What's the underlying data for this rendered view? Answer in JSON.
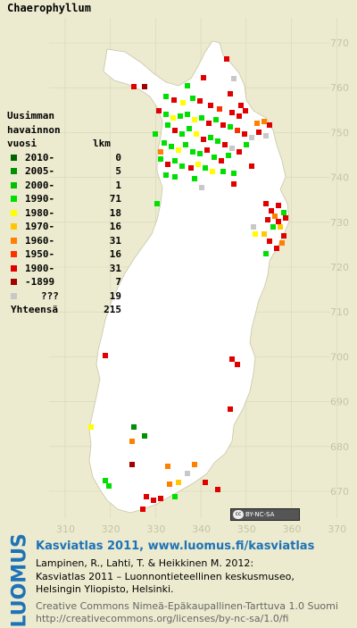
{
  "title": "Chaerophyllum",
  "legend": {
    "header_line1": "Uusimman",
    "header_line2": "havainnon",
    "header_col1": "vuosi",
    "header_col2": "lkm",
    "rows": [
      {
        "label": "2010-",
        "count": "0",
        "color": "#006400"
      },
      {
        "label": "2005-",
        "count": "5",
        "color": "#009000"
      },
      {
        "label": "2000-",
        "count": "1",
        "color": "#00c000"
      },
      {
        "label": "1990-",
        "count": "71",
        "color": "#00e000"
      },
      {
        "label": "1980-",
        "count": "18",
        "color": "#ffff00"
      },
      {
        "label": "1970-",
        "count": "16",
        "color": "#ffc800"
      },
      {
        "label": "1960-",
        "count": "31",
        "color": "#ff8000"
      },
      {
        "label": "1950-",
        "count": "16",
        "color": "#ff3000"
      },
      {
        "label": "1900-",
        "count": "31",
        "color": "#e00000"
      },
      {
        "label": "-1899",
        "count": "7",
        "color": "#a00000"
      },
      {
        "label": "???",
        "count": "19",
        "color": "#c8c8c8"
      }
    ],
    "total_label": "Yhteensä",
    "total_count": "215"
  },
  "axes": {
    "y_ticks": [
      "770",
      "760",
      "750",
      "740",
      "730",
      "720",
      "710",
      "700",
      "690",
      "680",
      "670"
    ],
    "x_ticks": [
      "310",
      "320",
      "330",
      "340",
      "350",
      "360",
      "370"
    ]
  },
  "license_badge": "BY-NC-SA",
  "footer": {
    "logo": "LUOMUS",
    "line1": "Kasviatlas 2011, www.luomus.fi/kasviatlas",
    "line2": "Lampinen, R., Lahti, T. & Heikkinen M. 2012:",
    "line3": "Kasviatlas 2011 – Luonnontieteellinen keskusmuseo,",
    "line4": "Helsingin Yliopisto, Helsinki.",
    "line5": "Creative Commons Nimeä-Epäkaupallinen-Tarttuva 1.0 Suomi",
    "line6": "http://creativecommons.org/licenses/by-nc-sa/1.0/fi"
  }
}
